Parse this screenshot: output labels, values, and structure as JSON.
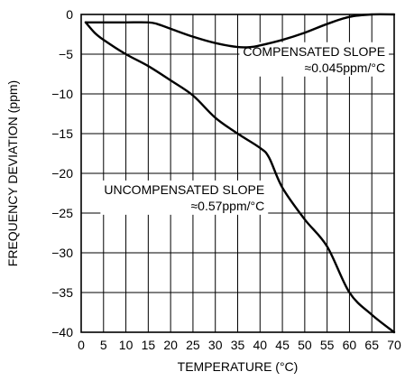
{
  "chart_data": {
    "type": "line",
    "xlabel": "TEMPERATURE (°C)",
    "ylabel": "FREQUENCY DEVIATION (ppm)",
    "xlim": [
      0,
      70
    ],
    "ylim": [
      -40,
      0
    ],
    "xticks": [
      0,
      5,
      10,
      15,
      20,
      25,
      30,
      35,
      40,
      45,
      50,
      55,
      60,
      65,
      70
    ],
    "yticks": [
      0,
      -5,
      -10,
      -15,
      -20,
      -25,
      -30,
      -35,
      -40
    ],
    "grid": true,
    "series": [
      {
        "id": "compensated",
        "x": [
          1,
          5,
          10,
          15,
          17,
          20,
          25,
          30,
          35,
          38,
          40,
          45,
          50,
          55,
          60,
          65,
          70
        ],
        "y": [
          -1,
          -1,
          -1,
          -1,
          -1.2,
          -1.8,
          -2.8,
          -3.6,
          -4.1,
          -4.1,
          -3.9,
          -3.2,
          -2.3,
          -1.2,
          -0.3,
          0,
          0
        ]
      },
      {
        "id": "uncompensated",
        "x": [
          1,
          3,
          5,
          10,
          15,
          20,
          25,
          30,
          35,
          40,
          42,
          45,
          50,
          55,
          60,
          65,
          70
        ],
        "y": [
          -1,
          -2.3,
          -3.2,
          -5,
          -6.5,
          -8.3,
          -10.2,
          -13,
          -15,
          -16.8,
          -18,
          -21.8,
          -25.8,
          -29.2,
          -35,
          -37.8,
          -40
        ]
      }
    ],
    "annotations": [
      {
        "lines": [
          "COMPENSATED SLOPE",
          "≈0.045ppm/°C"
        ],
        "x": 68,
        "y": -5.2,
        "align": "end"
      },
      {
        "lines": [
          "UNCOMPENSATED SLOPE",
          "≈0.57ppm/°C"
        ],
        "x": 41,
        "y": -22.6,
        "align": "end"
      }
    ]
  }
}
